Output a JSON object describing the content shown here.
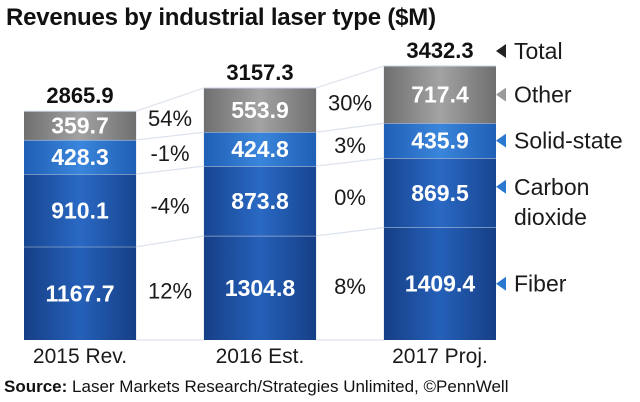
{
  "title": "Revenues by industrial laser type ($M)",
  "source": {
    "label": "Source:",
    "text": "Laser Markets Research/Strategies Unlimited, ©PennWell"
  },
  "colors": {
    "fiber": "#1e55a8",
    "carbon_dioxide": "#1f5db6",
    "solid_state": "#2a73cc",
    "other": "#8e8e8e",
    "band": "#dde3ec",
    "marker_blue": "#2a78cf",
    "marker_gray": "#9a9a9a",
    "marker_black": "#222222"
  },
  "chart_data": {
    "type": "bar",
    "stacked": true,
    "title": "Revenues by industrial laser type ($M)",
    "categories": [
      "2015 Rev.",
      "2016 Est.",
      "2017 Proj."
    ],
    "series": [
      {
        "name": "Fiber",
        "key": "fiber",
        "values": [
          1167.7,
          1304.8,
          1409.4
        ]
      },
      {
        "name": "Carbon dioxide",
        "key": "carbon_dioxide",
        "values": [
          910.1,
          873.8,
          869.5
        ]
      },
      {
        "name": "Solid-state",
        "key": "solid_state",
        "values": [
          428.3,
          424.8,
          435.9
        ]
      },
      {
        "name": "Other",
        "key": "other",
        "values": [
          359.7,
          553.9,
          717.4
        ]
      }
    ],
    "totals": [
      2865.9,
      3157.3,
      3432.3
    ],
    "total_label": "Total",
    "growth": [
      {
        "fiber": "12%",
        "carbon_dioxide": "-4%",
        "solid_state": "-1%",
        "other": "54%"
      },
      {
        "fiber": "8%",
        "carbon_dioxide": "0%",
        "solid_state": "3%",
        "other": "30%"
      }
    ],
    "legend": [
      {
        "key": "total",
        "lines": [
          "Total"
        ],
        "marker": "black"
      },
      {
        "key": "other",
        "lines": [
          "Other"
        ],
        "marker": "gray"
      },
      {
        "key": "solid_state",
        "lines": [
          "Solid-state"
        ],
        "marker": "blue"
      },
      {
        "key": "carbon_dioxide",
        "lines": [
          "Carbon",
          "dioxide"
        ],
        "marker": "blue"
      },
      {
        "key": "fiber",
        "lines": [
          "Fiber"
        ],
        "marker": "blue"
      }
    ],
    "legend_position": "right",
    "ylim": [
      0,
      3432.3
    ],
    "grid": false
  }
}
